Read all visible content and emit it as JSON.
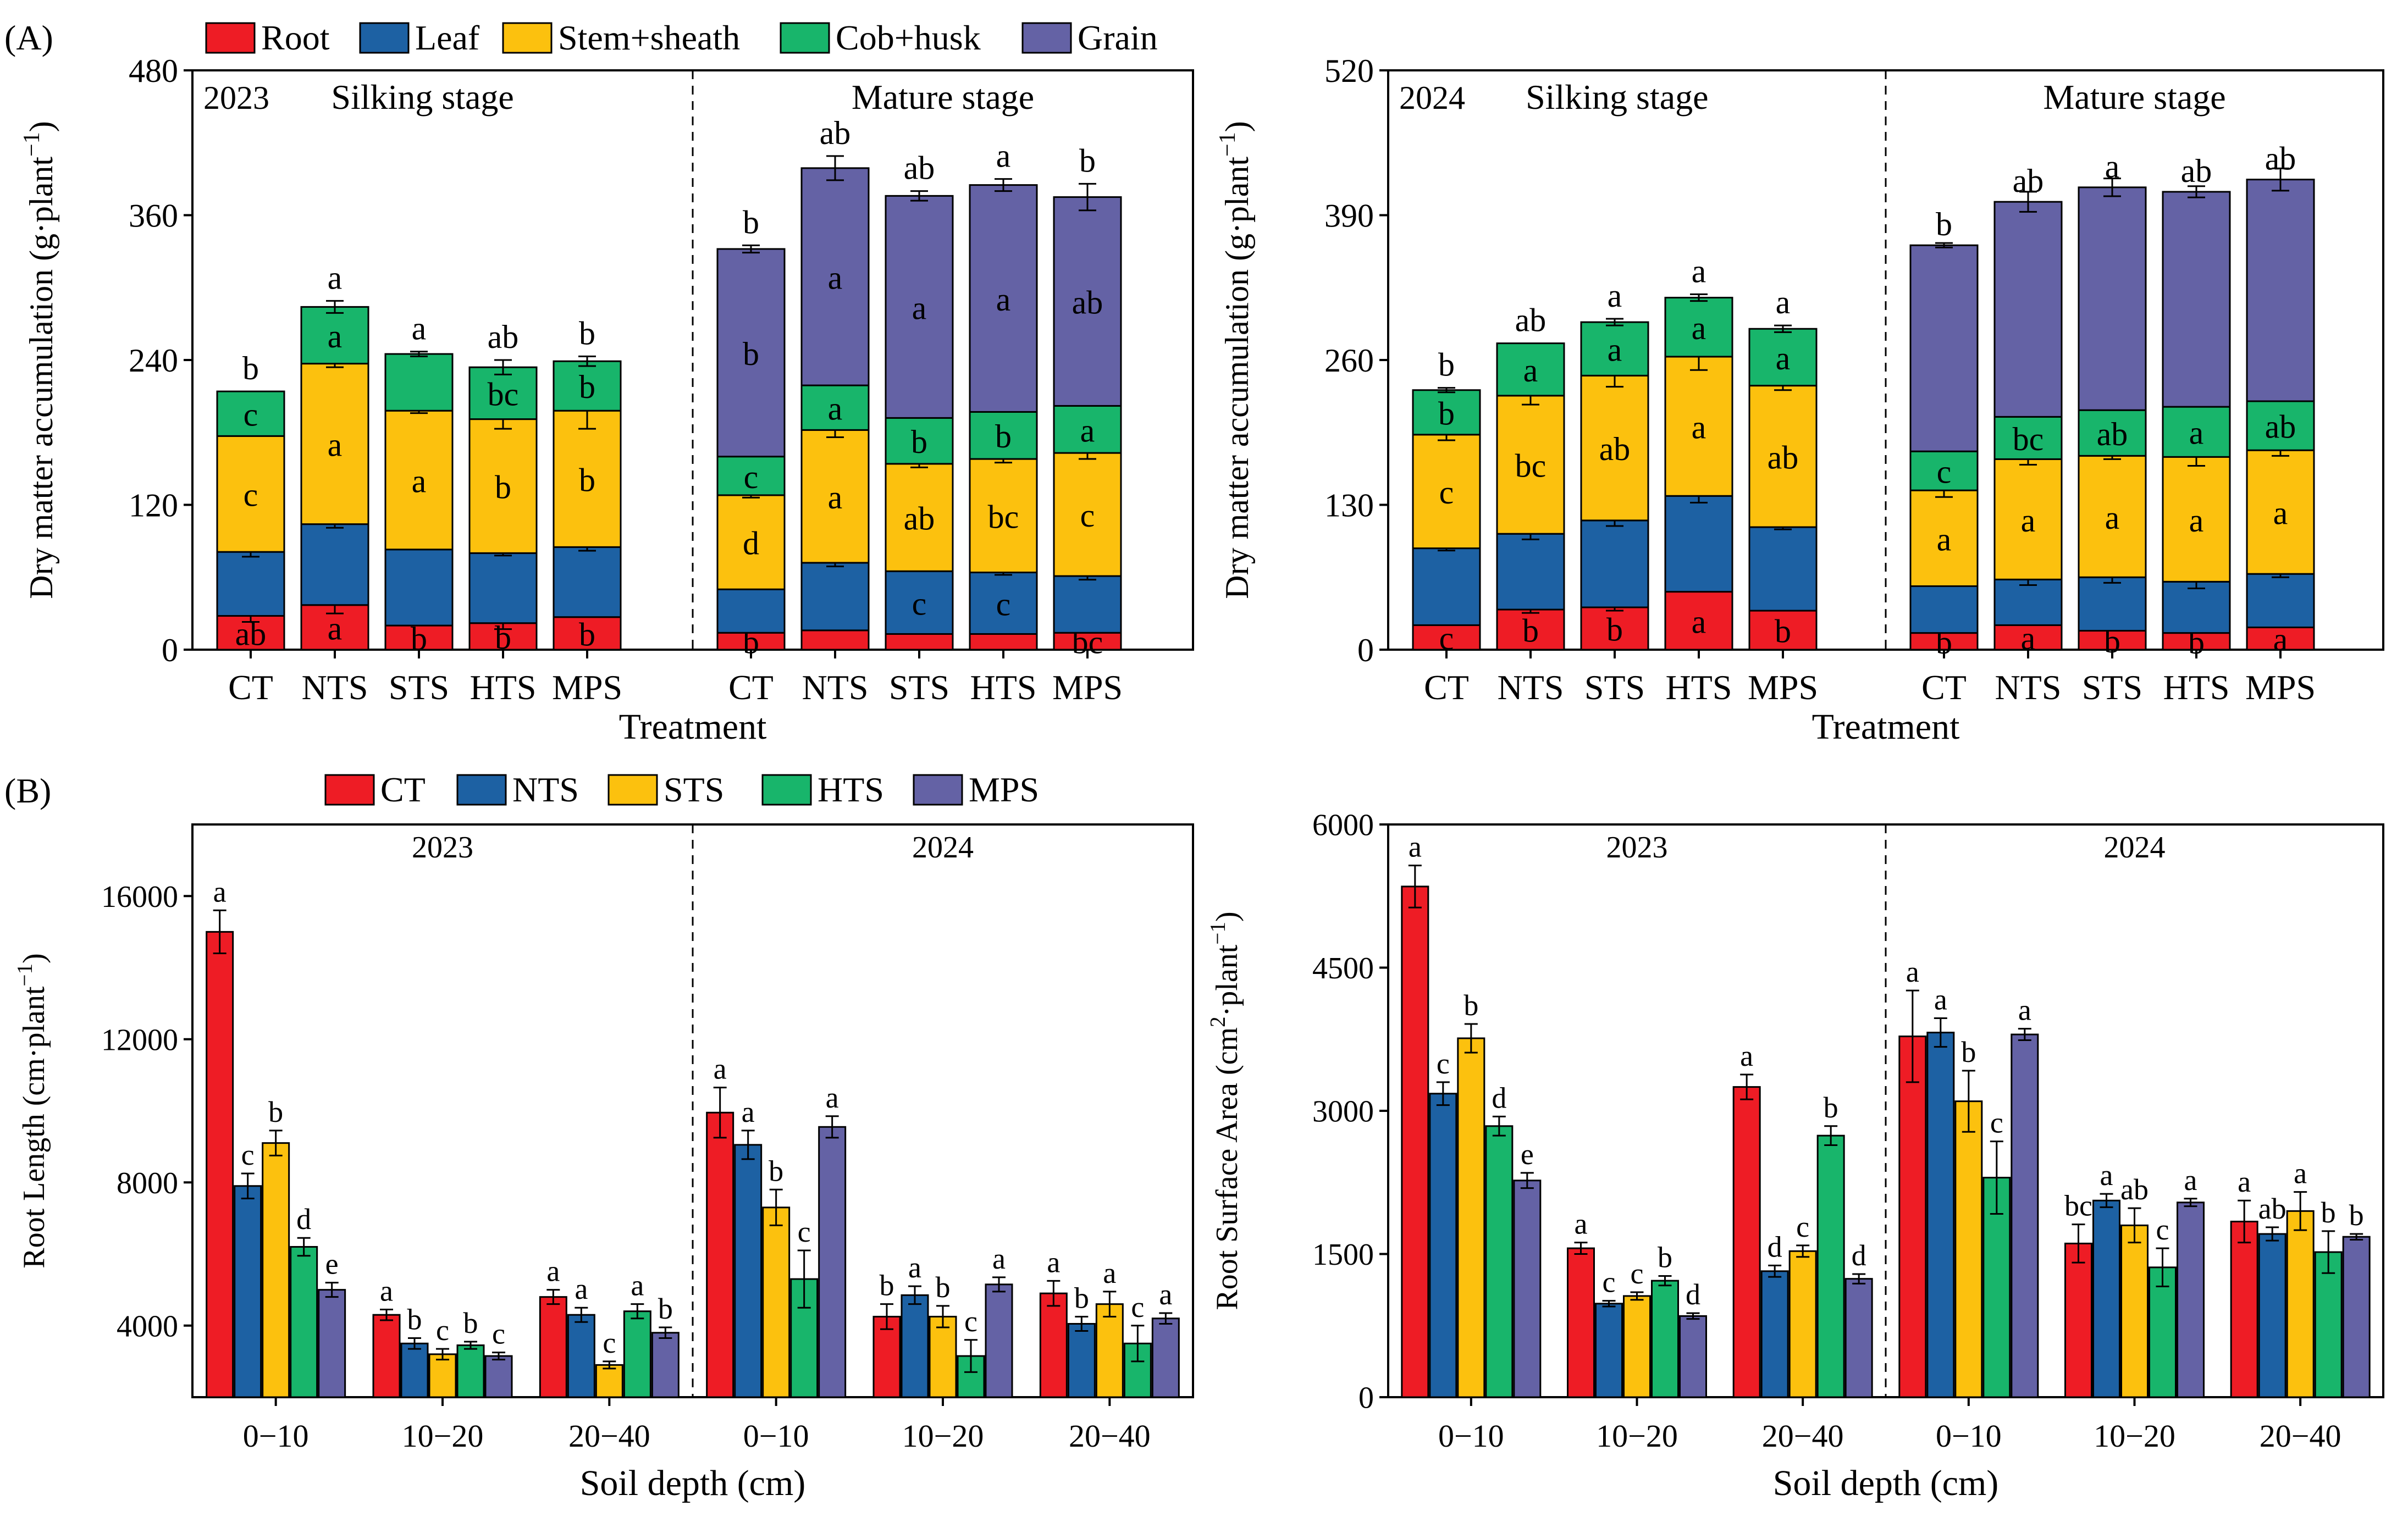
{
  "panel_labels": {
    "a": "(A)",
    "b": "(B)"
  },
  "colors": {
    "Root": "#ee1c25",
    "Leaf": "#1d61a3",
    "Stem+sheath": "#fcc10e",
    "Cob+husk": "#18b56b",
    "Grain": "#6462a5",
    "CT": "#ee1c25",
    "NTS": "#1d61a3",
    "STS": "#fcc10e",
    "HTS": "#18b56b",
    "MPS": "#6462a5"
  },
  "legend_a": [
    "Root",
    "Leaf",
    "Stem+sheath",
    "Cob+husk",
    "Grain"
  ],
  "legend_b": [
    "CT",
    "NTS",
    "STS",
    "HTS",
    "MPS"
  ],
  "chart_data": [
    {
      "type": "bar",
      "stacked": true,
      "panel": "A",
      "year": "2023",
      "ylabel": "Dry matter accumulation (g·plant",
      "ylabel_exp": "−1",
      "ylabel_close": ")",
      "xlabel": "Treatment",
      "ylim": [
        0,
        480
      ],
      "yticks": [
        0,
        120,
        240,
        360,
        480
      ],
      "groups": [
        {
          "label": "Silking stage",
          "categories": [
            "CT",
            "NTS",
            "STS",
            "HTS",
            "MPS"
          ],
          "series": [
            {
              "name": "Root",
              "values": [
                28,
                37,
                20,
                22,
                27
              ],
              "err": [
                5,
                7,
                0,
                5,
                0
              ],
              "letters": [
                "ab",
                "a",
                "b",
                "b",
                "b"
              ]
            },
            {
              "name": "Leaf",
              "values": [
                53,
                67,
                63,
                58,
                58
              ],
              "err": [
                4,
                3,
                0,
                2,
                3
              ],
              "letters": [
                "",
                "",
                "",
                "",
                ""
              ]
            },
            {
              "name": "Stem+sheath",
              "values": [
                96,
                133,
                115,
                111,
                113
              ],
              "err": [
                0,
                3,
                2,
                8,
                15
              ],
              "letters": [
                "c",
                "a",
                "a",
                "b",
                "b"
              ]
            },
            {
              "name": "Cob+husk",
              "values": [
                37,
                47,
                47,
                43,
                41
              ],
              "err": [
                0,
                5,
                2,
                6,
                4
              ],
              "letters": [
                "c",
                "a",
                "",
                "bc",
                "b"
              ]
            }
          ],
          "total_letters": [
            "b",
            "a",
            "a",
            "ab",
            "b"
          ]
        },
        {
          "label": "Mature stage",
          "categories": [
            "CT",
            "NTS",
            "STS",
            "HTS",
            "MPS"
          ],
          "series": [
            {
              "name": "Root",
              "values": [
                14,
                16,
                13,
                13,
                14
              ],
              "err": [
                0,
                0,
                0,
                0,
                0
              ],
              "letters": [
                "b",
                "",
                "",
                "",
                "bc"
              ]
            },
            {
              "name": "Leaf",
              "values": [
                36,
                56,
                52,
                51,
                47
              ],
              "err": [
                0,
                3,
                0,
                2,
                3
              ],
              "letters": [
                "",
                "",
                "c",
                "c",
                ""
              ]
            },
            {
              "name": "Stem+sheath",
              "values": [
                78,
                110,
                89,
                94,
                102
              ],
              "err": [
                2,
                6,
                3,
                3,
                5
              ],
              "letters": [
                "d",
                "a",
                "ab",
                "bc",
                "c"
              ]
            },
            {
              "name": "Cob+husk",
              "values": [
                32,
                37,
                38,
                39,
                39
              ],
              "err": [
                0,
                0,
                0,
                0,
                0
              ],
              "letters": [
                "c",
                "a",
                "b",
                "b",
                "a"
              ]
            },
            {
              "name": "Grain",
              "values": [
                172,
                180,
                184,
                188,
                173
              ],
              "err": [
                3,
                10,
                4,
                5,
                11
              ],
              "letters": [
                "b",
                "a",
                "a",
                "a",
                "ab"
              ]
            }
          ],
          "total_letters": [
            "b",
            "ab",
            "ab",
            "a",
            "b"
          ]
        }
      ]
    },
    {
      "type": "bar",
      "stacked": true,
      "panel": "A",
      "year": "2024",
      "ylabel": "Dry matter accumulation (g·plant",
      "ylabel_exp": "−1",
      "ylabel_close": ")",
      "xlabel": "Treatment",
      "ylim": [
        0,
        520
      ],
      "yticks": [
        0,
        130,
        260,
        390,
        520
      ],
      "groups": [
        {
          "label": "Silking stage",
          "categories": [
            "CT",
            "NTS",
            "STS",
            "HTS",
            "MPS"
          ],
          "series": [
            {
              "name": "Root",
              "values": [
                22,
                36,
                38,
                52,
                35
              ],
              "err": [
                0,
                3,
                3,
                0,
                0
              ],
              "letters": [
                "c",
                "b",
                "b",
                "a",
                "b"
              ]
            },
            {
              "name": "Leaf",
              "values": [
                69,
                68,
                78,
                86,
                75
              ],
              "err": [
                2,
                5,
                5,
                6,
                2
              ],
              "letters": [
                "",
                "",
                "",
                "",
                ""
              ]
            },
            {
              "name": "Stem+sheath",
              "values": [
                102,
                124,
                130,
                125,
                127
              ],
              "err": [
                5,
                8,
                10,
                12,
                4
              ],
              "letters": [
                "c",
                "bc",
                "ab",
                "a",
                "ab"
              ]
            },
            {
              "name": "Cob+husk",
              "values": [
                40,
                47,
                48,
                53,
                51
              ],
              "err": [
                2,
                0,
                3,
                3,
                3
              ],
              "letters": [
                "b",
                "a",
                "a",
                "a",
                "a"
              ]
            }
          ],
          "total_letters": [
            "b",
            "ab",
            "a",
            "a",
            "a"
          ]
        },
        {
          "label": "Mature stage",
          "categories": [
            "CT",
            "NTS",
            "STS",
            "HTS",
            "MPS"
          ],
          "series": [
            {
              "name": "Root",
              "values": [
                15,
                22,
                17,
                15,
                20
              ],
              "err": [
                0,
                0,
                0,
                0,
                0
              ],
              "letters": [
                "b",
                "a",
                "b",
                "b",
                "a"
              ]
            },
            {
              "name": "Leaf",
              "values": [
                42,
                41,
                48,
                46,
                48
              ],
              "err": [
                0,
                5,
                5,
                6,
                3
              ],
              "letters": [
                "",
                "",
                "",
                "",
                ""
              ]
            },
            {
              "name": "Stem+sheath",
              "values": [
                86,
                108,
                109,
                112,
                111
              ],
              "err": [
                6,
                5,
                3,
                8,
                5
              ],
              "letters": [
                "a",
                "a",
                "a",
                "a",
                "a"
              ]
            },
            {
              "name": "Cob+husk",
              "values": [
                35,
                38,
                41,
                45,
                44
              ],
              "err": [
                0,
                0,
                0,
                0,
                0
              ],
              "letters": [
                "c",
                "bc",
                "ab",
                "a",
                "ab"
              ]
            },
            {
              "name": "Grain",
              "values": [
                185,
                193,
                200,
                193,
                199
              ],
              "err": [
                2,
                9,
                8,
                5,
                10
              ],
              "letters": [
                "b",
                "ab",
                "a",
                "ab",
                "ab"
              ]
            }
          ],
          "total_letters": []
        }
      ]
    },
    {
      "type": "bar",
      "panel": "B",
      "title": "Root length",
      "ylabel": "Root Length (cm·plant",
      "ylabel_exp": "−1",
      "ylabel_close": ")",
      "xlabel": "Soil depth (cm)",
      "ylim": [
        2000,
        18000
      ],
      "yticks": [
        4000,
        8000,
        12000,
        16000
      ],
      "series_names": [
        "CT",
        "NTS",
        "STS",
        "HTS",
        "MPS"
      ],
      "panels": [
        {
          "label": "2023",
          "categories": [
            "0−10",
            "10−20",
            "20−40"
          ],
          "values": [
            [
              15000,
              7900,
              9100,
              6200,
              5000
            ],
            [
              4300,
              3500,
              3200,
              3450,
              3150
            ],
            [
              4800,
              4300,
              2900,
              4400,
              3800
            ]
          ],
          "err": [
            [
              600,
              350,
              350,
              250,
              200
            ],
            [
              150,
              150,
              150,
              100,
              100
            ],
            [
              200,
              200,
              100,
              200,
              150
            ]
          ],
          "letters": [
            [
              "a",
              "c",
              "b",
              "d",
              "e"
            ],
            [
              "a",
              "b",
              "c",
              "b",
              "c"
            ],
            [
              "a",
              "a",
              "c",
              "a",
              "b"
            ]
          ]
        },
        {
          "label": "2024",
          "categories": [
            "0−10",
            "10−20",
            "20−40"
          ],
          "values": [
            [
              9950,
              9050,
              7300,
              5300,
              9550
            ],
            [
              4250,
              4850,
              4250,
              3150,
              5150
            ],
            [
              4900,
              4050,
              4600,
              3500,
              4200
            ]
          ],
          "err": [
            [
              700,
              400,
              500,
              800,
              300
            ],
            [
              350,
              250,
              300,
              450,
              200
            ],
            [
              350,
              200,
              350,
              500,
              150
            ]
          ],
          "letters": [
            [
              "a",
              "a",
              "b",
              "c",
              "a"
            ],
            [
              "b",
              "a",
              "b",
              "c",
              "a"
            ],
            [
              "a",
              "b",
              "a",
              "c",
              "a"
            ]
          ]
        }
      ]
    },
    {
      "type": "bar",
      "panel": "B",
      "title": "Root surface area",
      "ylabel": "Root Surface Area (cm",
      "ylabel_exp": "2",
      "ylabel_mid": "·plant",
      "ylabel_exp2": "−1",
      "ylabel_close": ")",
      "xlabel": "Soil depth (cm)",
      "ylim": [
        0,
        6000
      ],
      "yticks": [
        0,
        1500,
        3000,
        4500,
        6000
      ],
      "series_names": [
        "CT",
        "NTS",
        "STS",
        "HTS",
        "MPS"
      ],
      "panels": [
        {
          "label": "2023",
          "categories": [
            "0−10",
            "10−20",
            "20−40"
          ],
          "values": [
            [
              5350,
              3180,
              3760,
              2840,
              2270
            ],
            [
              1560,
              980,
              1060,
              1220,
              850
            ],
            [
              3250,
              1320,
              1530,
              2740,
              1240
            ]
          ],
          "err": [
            [
              220,
              120,
              150,
              100,
              80
            ],
            [
              60,
              30,
              40,
              50,
              30
            ],
            [
              130,
              60,
              60,
              100,
              50
            ]
          ],
          "letters": [
            [
              "a",
              "c",
              "b",
              "d",
              "e"
            ],
            [
              "a",
              "c",
              "c",
              "b",
              "d"
            ],
            [
              "a",
              "d",
              "c",
              "b",
              "d"
            ]
          ]
        },
        {
          "label": "2024",
          "categories": [
            "0−10",
            "10−20",
            "20−40"
          ],
          "values": [
            [
              3780,
              3820,
              3100,
              2300,
              3800
            ],
            [
              1610,
              2060,
              1800,
              1360,
              2040
            ],
            [
              1840,
              1710,
              1950,
              1520,
              1680
            ]
          ],
          "err": [
            [
              480,
              150,
              320,
              380,
              60
            ],
            [
              200,
              70,
              180,
              200,
              40
            ],
            [
              220,
              70,
              200,
              220,
              30
            ]
          ],
          "letters": [
            [
              "a",
              "a",
              "b",
              "c",
              "a"
            ],
            [
              "bc",
              "a",
              "ab",
              "c",
              "a"
            ],
            [
              "a",
              "ab",
              "a",
              "b",
              "b"
            ]
          ]
        }
      ]
    }
  ]
}
